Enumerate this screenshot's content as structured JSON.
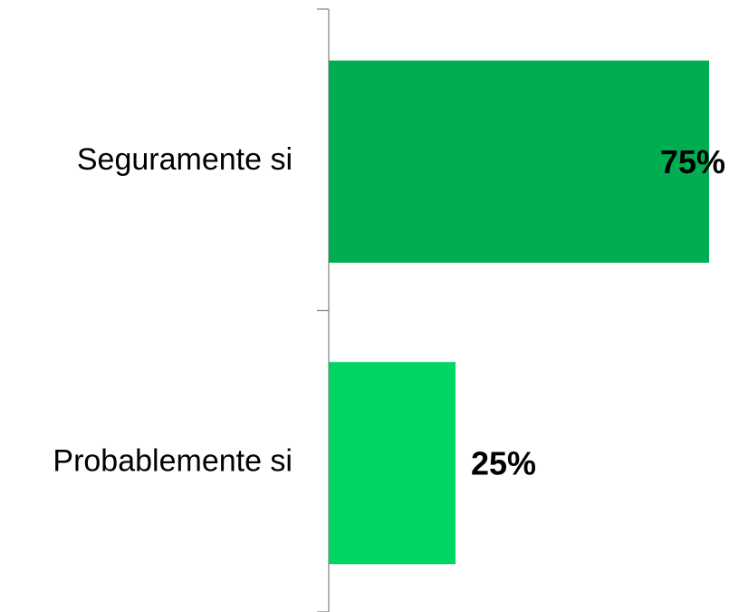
{
  "chart_data": {
    "type": "hbar",
    "categories": [
      "Seguramente si",
      "Probablemente si"
    ],
    "values": [
      75,
      25
    ],
    "value_labels": [
      "75%",
      "25%"
    ],
    "colors": [
      "#00ad50",
      "#00d463"
    ]
  }
}
